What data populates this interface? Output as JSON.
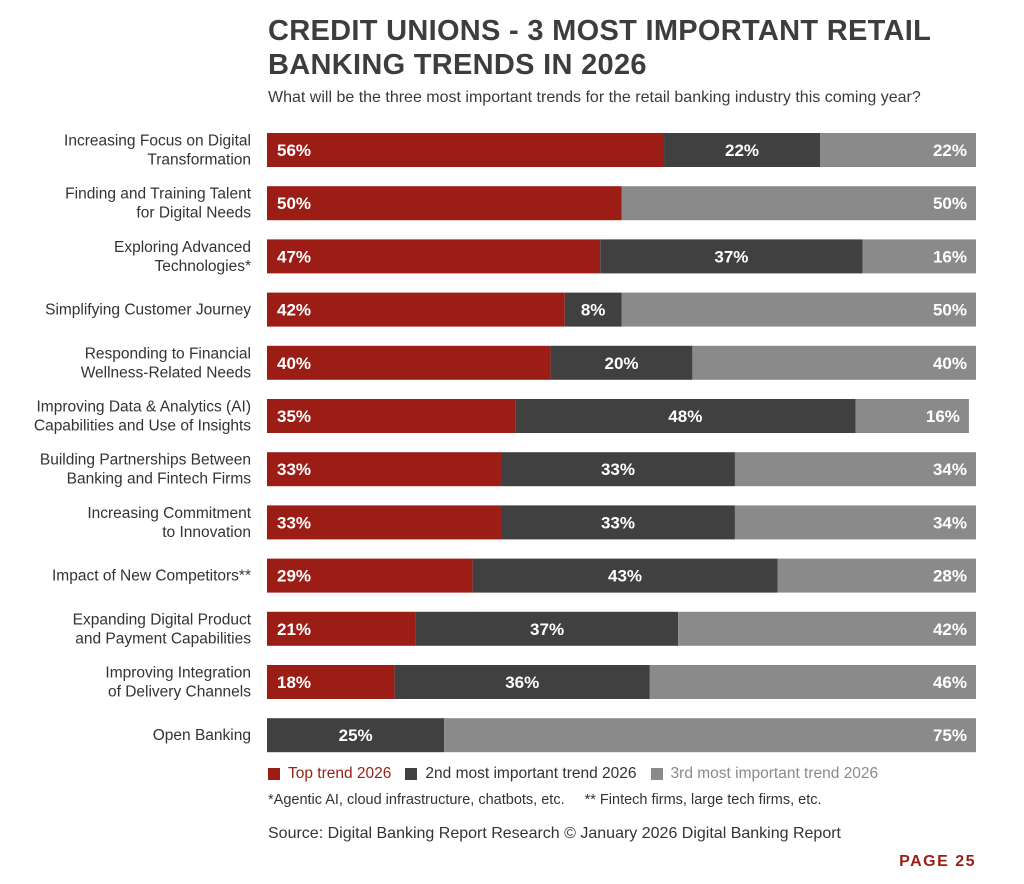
{
  "title": "CREDIT UNIONS - 3 MOST IMPORTANT RETAIL BANKING TRENDS IN 2026",
  "subtitle": "What will be the three most important trends for the retail banking industry this coming year?",
  "colors": {
    "top": "#9c1d16",
    "second": "#404040",
    "third": "#8a8a8a",
    "legend_third_text": "#8a8a8a"
  },
  "legend": [
    {
      "label": "Top trend 2026",
      "color": "#9c1d16"
    },
    {
      "label": "2nd most important trend 2026",
      "color": "#404040"
    },
    {
      "label": "3rd most important trend 2026",
      "color": "#8a8a8a"
    }
  ],
  "notes": {
    "note1": "*Agentic AI, cloud infrastructure, chatbots, etc.",
    "note2": "** Fintech firms, large tech firms, etc."
  },
  "source": "Source: Digital Banking Report Research © January 2026 Digital Banking Report",
  "page_label": "PAGE 25",
  "chart_data": {
    "type": "bar",
    "orientation": "horizontal",
    "stacked": true,
    "unit": "%",
    "title": "CREDIT UNIONS - 3 MOST IMPORTANT RETAIL BANKING TRENDS IN 2026",
    "categories": [
      [
        "Increasing Focus on Digital",
        "Transformation"
      ],
      [
        "Finding and Training Talent",
        "for Digital Needs"
      ],
      [
        "Exploring Advanced",
        "Technologies*"
      ],
      [
        "Simplifying Customer Journey"
      ],
      [
        "Responding to Financial",
        "Wellness-Related Needs"
      ],
      [
        "Improving Data & Analytics (AI)",
        "Capabilities and Use of Insights"
      ],
      [
        "Building Partnerships Between",
        "Banking and Fintech Firms"
      ],
      [
        "Increasing Commitment",
        "to Innovation"
      ],
      [
        "Impact of New Competitors**"
      ],
      [
        "Expanding Digital Product",
        "and Payment Capabilities"
      ],
      [
        "Improving Integration",
        "of Delivery Channels"
      ],
      [
        "Open Banking"
      ]
    ],
    "series": [
      {
        "name": "Top trend 2026",
        "color": "#9c1d16",
        "values": [
          56,
          50,
          47,
          42,
          40,
          35,
          33,
          33,
          29,
          21,
          18,
          0
        ]
      },
      {
        "name": "2nd most important trend 2026",
        "color": "#404040",
        "values": [
          22,
          0,
          37,
          8,
          20,
          48,
          33,
          33,
          43,
          37,
          36,
          25
        ]
      },
      {
        "name": "3rd most important trend 2026",
        "color": "#8a8a8a",
        "values": [
          22,
          50,
          16,
          50,
          40,
          16,
          34,
          34,
          28,
          42,
          46,
          75
        ]
      }
    ],
    "xlim": [
      0,
      100
    ],
    "grid": false,
    "legend_position": "bottom"
  }
}
